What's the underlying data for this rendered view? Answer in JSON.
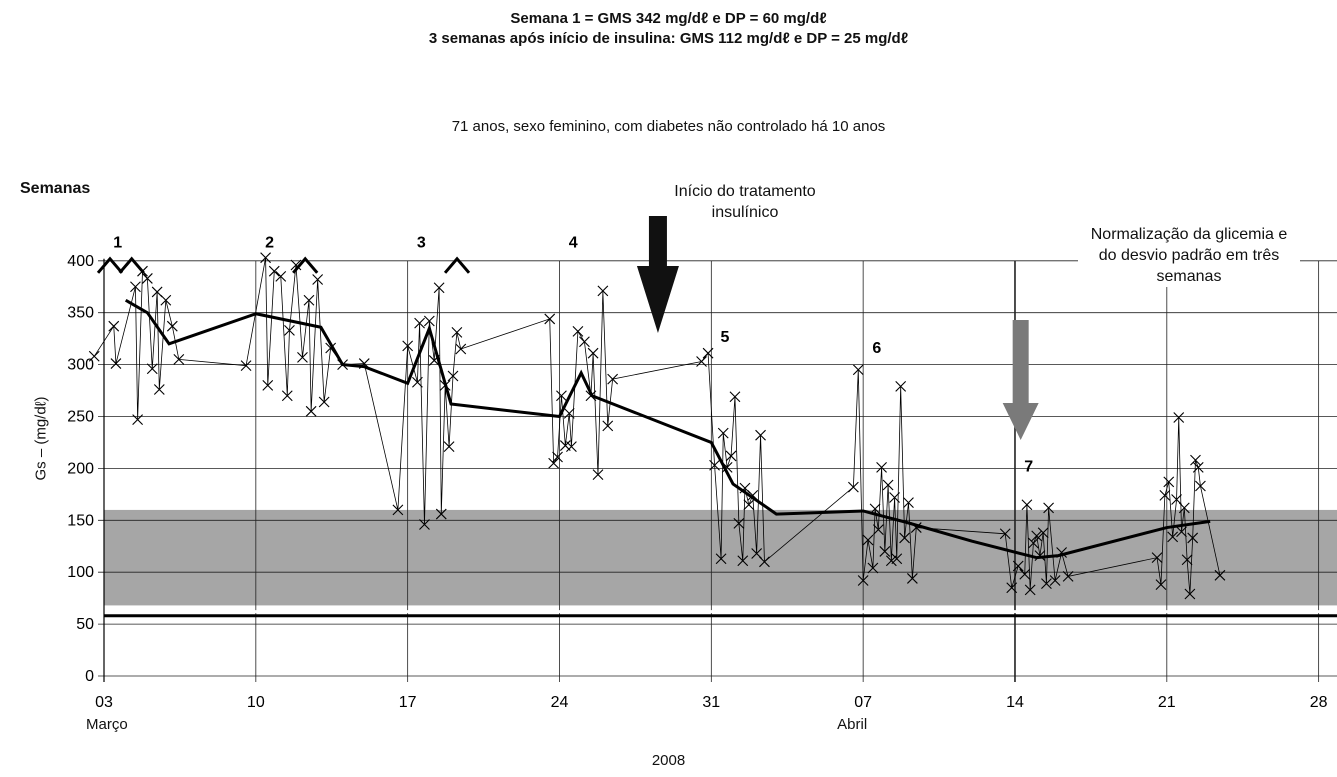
{
  "chart_data": {
    "type": "line",
    "title_line1": "Semana 1 = GMS 342 mg/dℓ e DP = 60 mg/dℓ",
    "title_line2": "3 semanas após início de insulina: GMS 112 mg/dℓ e DP = 25 mg/dℓ",
    "subtitle": "71 anos, sexo feminino, com diabetes não controlado há 10 anos",
    "ylabel": "Gs – (mg/dℓ)",
    "xlabel": "2008",
    "weeks_label": "Semanas",
    "ylim": [
      0,
      400
    ],
    "yticks": [
      0,
      50,
      100,
      150,
      200,
      250,
      300,
      350,
      400
    ],
    "x_start": "2008-03-03",
    "x_end": "2008-03-28",
    "xtick_dates": [
      "2008-03-03",
      "2008-03-10",
      "2008-03-17",
      "2008-03-24",
      "2008-03-31",
      "2008-04-07",
      "2008-04-14",
      "2008-04-21",
      "2008-04-28"
    ],
    "xtick_labels": [
      "03",
      "10",
      "17",
      "24",
      "31",
      "07",
      "14",
      "21",
      "28"
    ],
    "month_labels": [
      {
        "text": "Março",
        "date": "2008-03-03"
      },
      {
        "text": "Abril",
        "date": "2008-04-07"
      }
    ],
    "target_band": [
      68,
      160
    ],
    "hypo_lines": [
      58,
      62
    ],
    "week_markers": [
      {
        "label": "1",
        "date": "2008-03-04",
        "y": 413
      },
      {
        "label": "2",
        "date": "2008-03-11",
        "y": 413
      },
      {
        "label": "3",
        "date": "2008-03-18",
        "y": 413
      },
      {
        "label": "4",
        "date": "2008-03-25",
        "y": 413
      },
      {
        "label": "5",
        "date": "2008-04-01",
        "y": 322
      },
      {
        "label": "6",
        "date": "2008-04-08",
        "y": 311
      },
      {
        "label": "7",
        "date": "2008-04-15",
        "y": 197
      }
    ],
    "annotations": [
      {
        "text": "Início do tratamento insulínico",
        "arrow": "black",
        "date": "2008-03-29"
      },
      {
        "text": "Normalização da glicemia e do desvio padrão em três semanas",
        "arrow": "gray",
        "date": "2008-04-15"
      }
    ],
    "offscale_markers": [
      {
        "date": "2008-03-03",
        "y": 400
      },
      {
        "date": "2008-03-04",
        "y": 400
      },
      {
        "date": "2008-03-12",
        "y": 400
      },
      {
        "date": "2008-03-19",
        "y": 400
      }
    ],
    "series": [
      {
        "name": "readings",
        "points": [
          [
            "2008-03-03",
            308
          ],
          [
            "2008-03-03",
            337
          ],
          [
            "2008-03-04",
            301
          ],
          [
            "2008-03-04",
            375
          ],
          [
            "2008-03-05",
            247
          ],
          [
            "2008-03-05",
            390
          ],
          [
            "2008-03-05",
            383
          ],
          [
            "2008-03-05",
            296
          ],
          [
            "2008-03-05",
            370
          ],
          [
            "2008-03-06",
            276
          ],
          [
            "2008-03-06",
            362
          ],
          [
            "2008-03-06",
            337
          ],
          [
            "2008-03-06",
            305
          ],
          [
            "2008-03-10",
            299
          ],
          [
            "2008-03-10",
            403
          ],
          [
            "2008-03-11",
            280
          ],
          [
            "2008-03-11",
            390
          ],
          [
            "2008-03-11",
            385
          ],
          [
            "2008-03-11",
            270
          ],
          [
            "2008-03-12",
            333
          ],
          [
            "2008-03-12",
            396
          ],
          [
            "2008-03-12",
            307
          ],
          [
            "2008-03-12",
            362
          ],
          [
            "2008-03-13",
            255
          ],
          [
            "2008-03-13",
            382
          ],
          [
            "2008-03-13",
            264
          ],
          [
            "2008-03-13",
            316
          ],
          [
            "2008-03-14",
            300
          ],
          [
            "2008-03-15",
            301
          ],
          [
            "2008-03-17",
            160
          ],
          [
            "2008-03-17",
            318
          ],
          [
            "2008-03-17",
            283
          ],
          [
            "2008-03-18",
            340
          ],
          [
            "2008-03-18",
            146
          ],
          [
            "2008-03-18",
            342
          ],
          [
            "2008-03-18",
            304
          ],
          [
            "2008-03-18",
            374
          ],
          [
            "2008-03-19",
            156
          ],
          [
            "2008-03-19",
            280
          ],
          [
            "2008-03-19",
            221
          ],
          [
            "2008-03-19",
            289
          ],
          [
            "2008-03-19",
            331
          ],
          [
            "2008-03-19",
            315
          ],
          [
            "2008-03-24",
            344
          ],
          [
            "2008-03-24",
            205
          ],
          [
            "2008-03-24",
            211
          ],
          [
            "2008-03-24",
            270
          ],
          [
            "2008-03-24",
            222
          ],
          [
            "2008-03-24",
            253
          ],
          [
            "2008-03-25",
            221
          ],
          [
            "2008-03-25",
            332
          ],
          [
            "2008-03-25",
            322
          ],
          [
            "2008-03-25",
            270
          ],
          [
            "2008-03-26",
            311
          ],
          [
            "2008-03-26",
            194
          ],
          [
            "2008-03-26",
            371
          ],
          [
            "2008-03-26",
            241
          ],
          [
            "2008-03-26",
            286
          ],
          [
            "2008-03-31",
            303
          ],
          [
            "2008-03-31",
            311
          ],
          [
            "2008-03-31",
            203
          ],
          [
            "2008-03-31",
            113
          ],
          [
            "2008-04-01",
            234
          ],
          [
            "2008-04-01",
            201
          ],
          [
            "2008-04-01",
            212
          ],
          [
            "2008-04-01",
            269
          ],
          [
            "2008-04-01",
            147
          ],
          [
            "2008-04-01",
            111
          ],
          [
            "2008-04-02",
            181
          ],
          [
            "2008-04-02",
            165
          ],
          [
            "2008-04-02",
            174
          ],
          [
            "2008-04-02",
            118
          ],
          [
            "2008-04-02",
            232
          ],
          [
            "2008-04-02",
            110
          ],
          [
            "2008-04-07",
            182
          ],
          [
            "2008-04-07",
            295
          ],
          [
            "2008-04-07",
            92
          ],
          [
            "2008-04-07",
            131
          ],
          [
            "2008-04-07",
            104
          ],
          [
            "2008-04-08",
            161
          ],
          [
            "2008-04-08",
            141
          ],
          [
            "2008-04-08",
            201
          ],
          [
            "2008-04-08",
            120
          ],
          [
            "2008-04-08",
            184
          ],
          [
            "2008-04-08",
            111
          ],
          [
            "2008-04-08",
            172
          ],
          [
            "2008-04-09",
            113
          ],
          [
            "2008-04-09",
            279
          ],
          [
            "2008-04-09",
            133
          ],
          [
            "2008-04-09",
            167
          ],
          [
            "2008-04-09",
            94
          ],
          [
            "2008-04-09",
            143
          ],
          [
            "2008-04-14",
            137
          ],
          [
            "2008-04-14",
            85
          ],
          [
            "2008-04-14",
            106
          ],
          [
            "2008-04-14",
            98
          ],
          [
            "2008-04-15",
            165
          ],
          [
            "2008-04-15",
            83
          ],
          [
            "2008-04-15",
            128
          ],
          [
            "2008-04-15",
            135
          ],
          [
            "2008-04-15",
            116
          ],
          [
            "2008-04-15",
            138
          ],
          [
            "2008-04-15",
            89
          ],
          [
            "2008-04-16",
            162
          ],
          [
            "2008-04-16",
            92
          ],
          [
            "2008-04-16",
            119
          ],
          [
            "2008-04-16",
            96
          ],
          [
            "2008-04-21",
            114
          ],
          [
            "2008-04-21",
            88
          ],
          [
            "2008-04-21",
            174
          ],
          [
            "2008-04-21",
            187
          ],
          [
            "2008-04-21",
            134
          ],
          [
            "2008-04-21",
            170
          ],
          [
            "2008-04-22",
            249
          ],
          [
            "2008-04-22",
            139
          ],
          [
            "2008-04-22",
            162
          ],
          [
            "2008-04-22",
            112
          ],
          [
            "2008-04-22",
            79
          ],
          [
            "2008-04-22",
            133
          ],
          [
            "2008-04-22",
            208
          ],
          [
            "2008-04-22",
            201
          ],
          [
            "2008-04-23",
            183
          ],
          [
            "2008-04-23",
            97
          ]
        ]
      },
      {
        "name": "trend",
        "points": [
          [
            "2008-03-04",
            362
          ],
          [
            "2008-03-05",
            350
          ],
          [
            "2008-03-06",
            320
          ],
          [
            "2008-03-10",
            349
          ],
          [
            "2008-03-13",
            336
          ],
          [
            "2008-03-14",
            300
          ],
          [
            "2008-03-15",
            298
          ],
          [
            "2008-03-17",
            282
          ],
          [
            "2008-03-18",
            335
          ],
          [
            "2008-03-19",
            262
          ],
          [
            "2008-03-24",
            250
          ],
          [
            "2008-03-25",
            292
          ],
          [
            "2008-03-25",
            270
          ],
          [
            "2008-03-31",
            225
          ],
          [
            "2008-04-01",
            185
          ],
          [
            "2008-04-03",
            156
          ],
          [
            "2008-04-07",
            159
          ],
          [
            "2008-04-09",
            148
          ],
          [
            "2008-04-12",
            130
          ],
          [
            "2008-04-15",
            114
          ],
          [
            "2008-04-16",
            116
          ],
          [
            "2008-04-21",
            143
          ],
          [
            "2008-04-23",
            149
          ]
        ]
      }
    ]
  }
}
